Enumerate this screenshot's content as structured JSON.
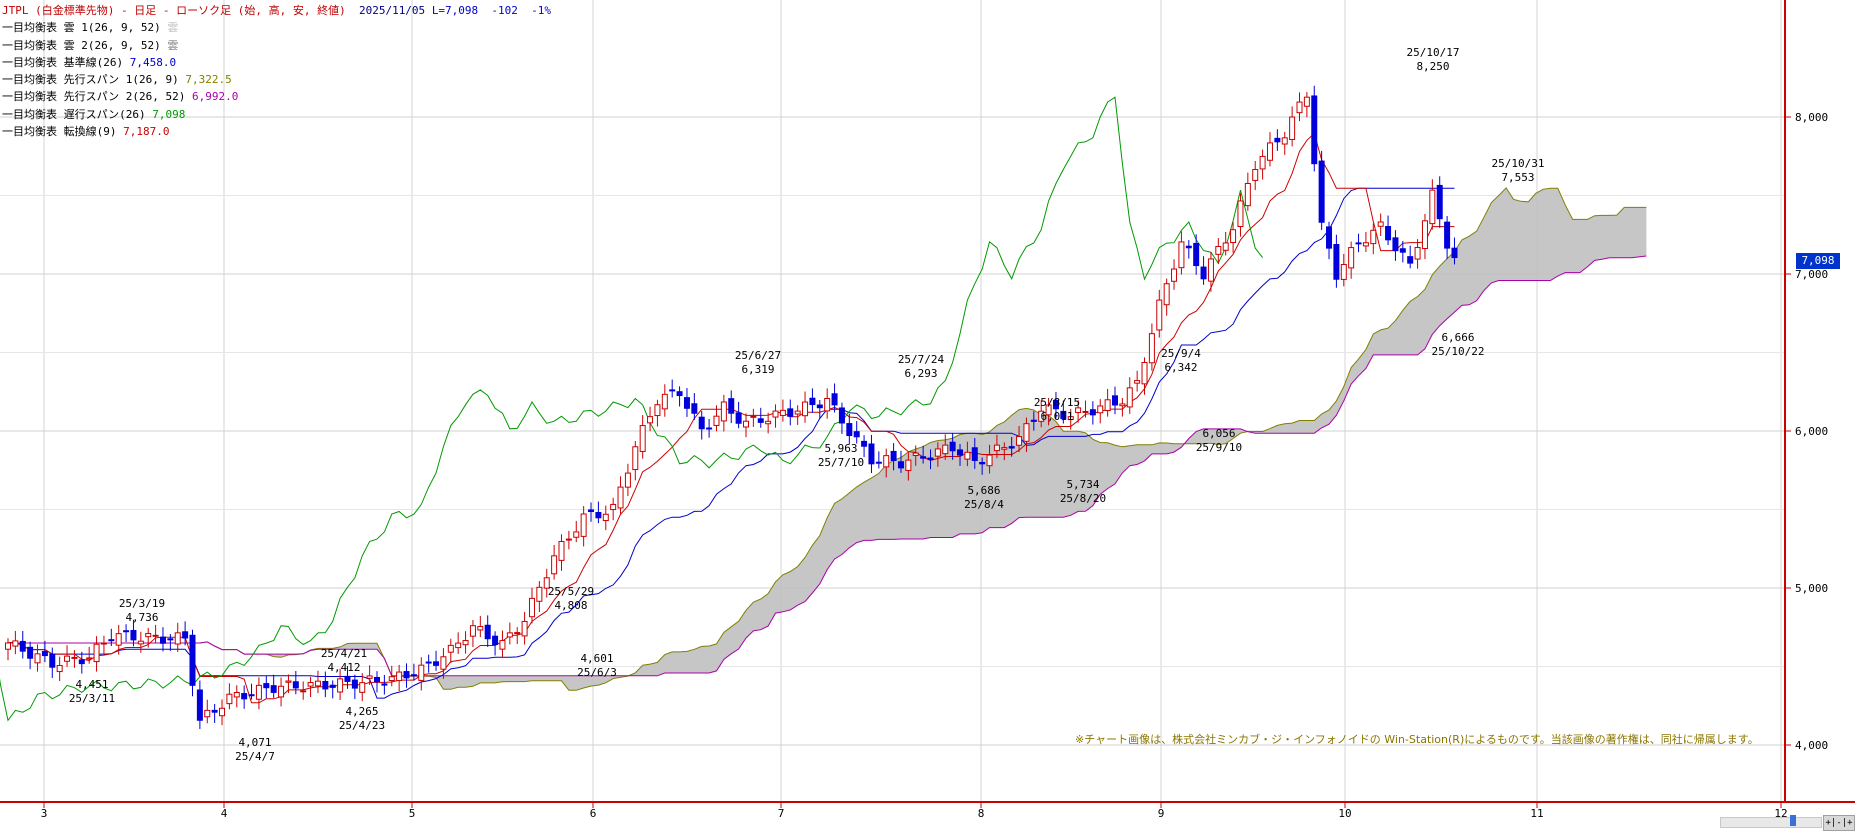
{
  "header": {
    "title": "JTPL (白金標準先物) - 日足 - ローソク足 (始, 高, 安, 終値)",
    "date": "2025/11/05",
    "last": "L=7,098",
    "change": "-102",
    "change_pct": "-1%"
  },
  "legend": [
    {
      "label": "一目均衡表 雲 1(26, 9, 52)",
      "value": "雲",
      "color": "#c0c0c0"
    },
    {
      "label": "一目均衡表 雲 2(26, 9, 52)",
      "value": "雲",
      "color": "#808080"
    },
    {
      "label": "一目均衡表 基準線(26)",
      "value": "7,458.0",
      "color": "#0000cc"
    },
    {
      "label": "一目均衡表 先行スパン 1(26, 9)",
      "value": "7,322.5",
      "color": "#808000"
    },
    {
      "label": "一目均衡表 先行スパン 2(26, 52)",
      "value": "6,992.0",
      "color": "#aa00aa"
    },
    {
      "label": "一目均衡表 遅行スパン(26)",
      "value": "7,098",
      "color": "#009900"
    },
    {
      "label": "一目均衡表 転換線(9)",
      "value": "7,187.0",
      "color": "#cc0000"
    }
  ],
  "copyright": "※チャート画像は、株式会社ミンカブ・ジ・インフォノイドの Win-Station(R)によるものです。当該画像の著作権は、同社に帰属します。",
  "last_badge": "7,098",
  "zoom_label": "+|-|+",
  "chart_data": {
    "type": "candlestick",
    "y_axis": {
      "ticks": [
        "4,000",
        "5,000",
        "6,000",
        "7,000",
        "8,000"
      ],
      "range": [
        3630,
        8620
      ]
    },
    "x_axis": {
      "ticks": [
        "3",
        "4",
        "5",
        "6",
        "7",
        "8",
        "9",
        "10",
        "11",
        "12"
      ]
    },
    "colors": {
      "up": "#cc0000",
      "down": "#0000dd",
      "tenkan": "#cc0000",
      "kijun": "#0000cc",
      "chikou": "#009900",
      "span1": "#808000",
      "span2": "#aa00aa",
      "cloud1": "#c0c0c0",
      "cloud2": "#808080"
    },
    "annotations": [
      {
        "date": "25/3/19",
        "value": "4,736",
        "pos": "above"
      },
      {
        "date": "25/3/11",
        "value": "4,451",
        "pos": "below"
      },
      {
        "date": "25/4/7",
        "value": "4,071",
        "pos": "below"
      },
      {
        "date": "25/4/21",
        "value": "4,412",
        "pos": "above"
      },
      {
        "date": "25/4/23",
        "value": "4,265",
        "pos": "below"
      },
      {
        "date": "25/5/29",
        "value": "4,808",
        "pos": "above"
      },
      {
        "date": "25/6/3",
        "value": "4,601",
        "pos": "below"
      },
      {
        "date": "25/6/27",
        "value": "6,319",
        "pos": "above"
      },
      {
        "date": "25/7/10",
        "value": "5,963",
        "pos": "below"
      },
      {
        "date": "25/7/24",
        "value": "6,293",
        "pos": "above"
      },
      {
        "date": "25/8/4",
        "value": "5,686",
        "pos": "below"
      },
      {
        "date": "25/8/15",
        "value": "6,011",
        "pos": "above"
      },
      {
        "date": "25/8/20",
        "value": "5,734",
        "pos": "below"
      },
      {
        "date": "25/9/4",
        "value": "6,342",
        "pos": "above"
      },
      {
        "date": "25/9/10",
        "value": "6,056",
        "pos": "below"
      },
      {
        "date": "25/10/17",
        "value": "8,250",
        "pos": "above"
      },
      {
        "date": "25/10/22",
        "value": "6,666",
        "pos": "below"
      },
      {
        "date": "25/10/31",
        "value": "7,553",
        "pos": "above"
      }
    ]
  }
}
